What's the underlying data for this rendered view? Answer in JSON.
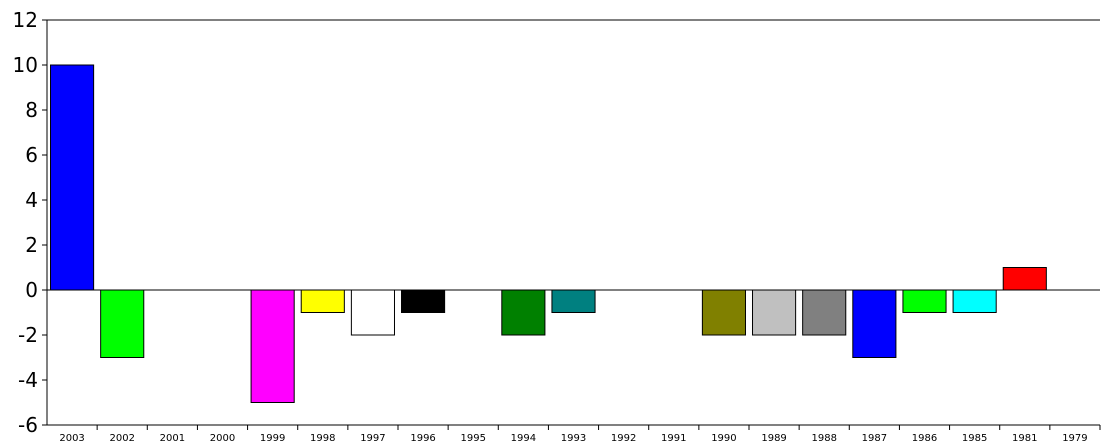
{
  "chart_data": {
    "type": "bar",
    "title": "",
    "xlabel": "",
    "ylabel": "",
    "ylim": [
      -6,
      12
    ],
    "y_ticks": [
      "-6",
      "-4",
      "-2",
      "0",
      "2",
      "4",
      "6",
      "8",
      "10",
      "12"
    ],
    "grid": false,
    "categories": [
      "2003",
      "2002",
      "2001",
      "2000",
      "1999",
      "1998",
      "1997",
      "1996",
      "1995",
      "1994",
      "1993",
      "1992",
      "1991",
      "1990",
      "1989",
      "1988",
      "1987",
      "1986",
      "1985",
      "1981",
      "1979"
    ],
    "values": [
      10,
      -3,
      null,
      null,
      -5,
      -1,
      -2,
      -1,
      null,
      -2,
      -1,
      null,
      null,
      -2,
      -2,
      -2,
      -3,
      -1,
      -1,
      1,
      null
    ],
    "colors": [
      "#0000ff",
      "#00ff00",
      "#ffffff",
      "#ffffff",
      "#ff00ff",
      "#ffff00",
      "#ffffff",
      "#000000",
      "#ffffff",
      "#008000",
      "#008080",
      "#ffffff",
      "#ffffff",
      "#808000",
      "#c0c0c0",
      "#808080",
      "#0000ff",
      "#00ff00",
      "#00ffff",
      "#ff0000",
      "#ffffff"
    ]
  }
}
